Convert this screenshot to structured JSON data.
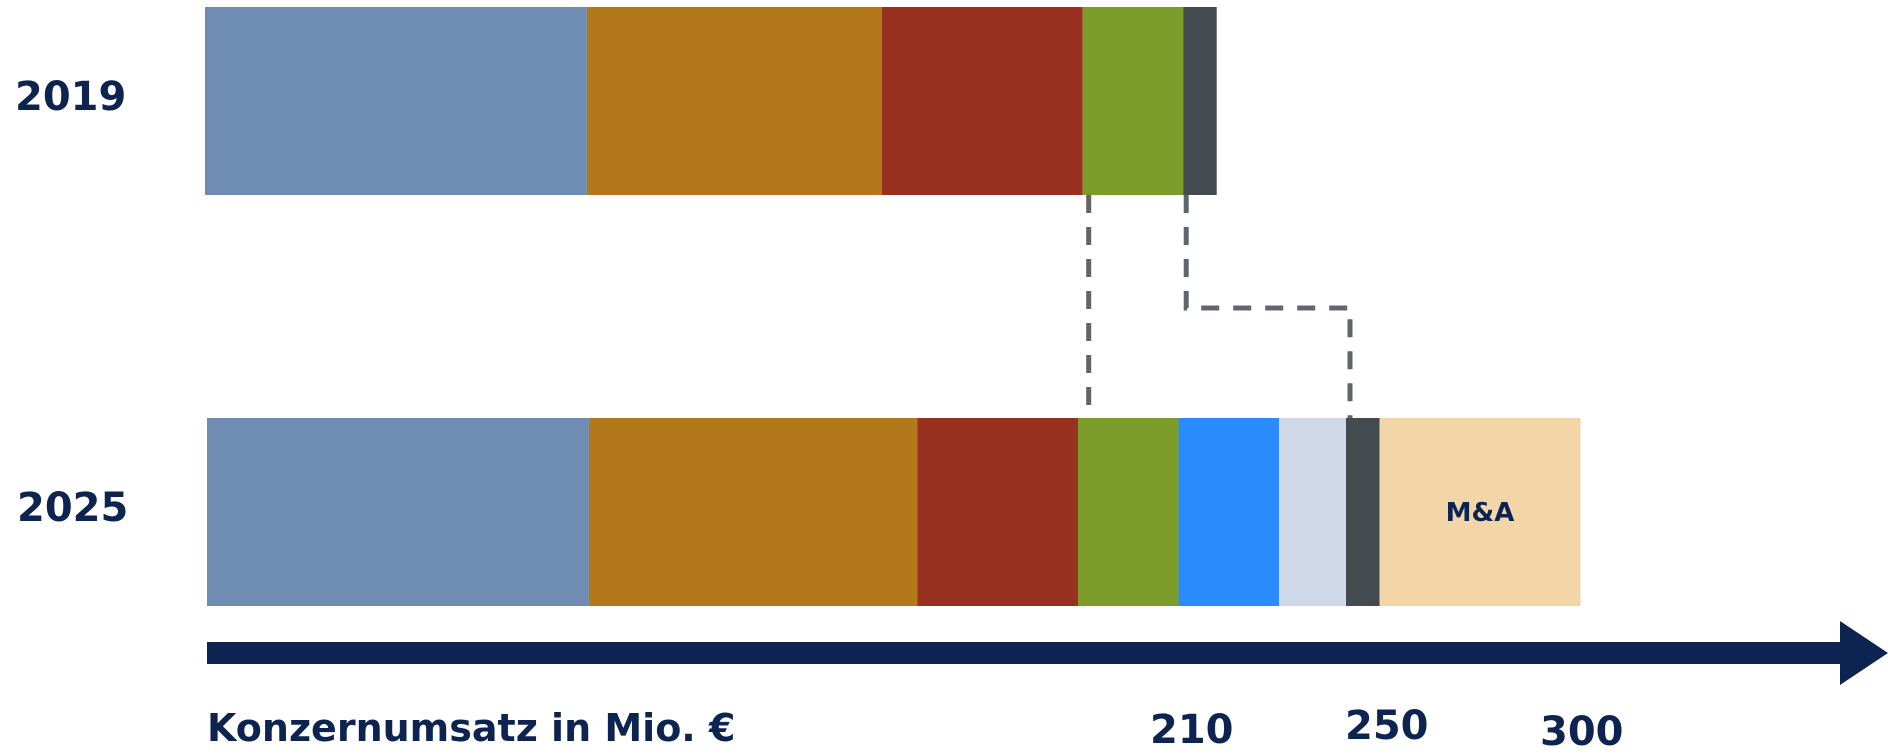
{
  "chart_data": {
    "type": "bar",
    "orientation": "horizontal",
    "stacked": true,
    "title": "",
    "xlabel": "Konzernumsatz in Mio. €",
    "ylabel": "",
    "categories": [
      "2019",
      "2025"
    ],
    "x_ticks": [
      "210",
      "250",
      "300"
    ],
    "bars": [
      {
        "category": "2019",
        "segments": [
          {
            "value": 57,
            "color": "#6f8cb2"
          },
          {
            "value": 44,
            "color": "#b27819"
          },
          {
            "value": 30,
            "color": "#993120"
          },
          {
            "value": 15,
            "color": "#7d9d2a"
          },
          {
            "value": 5,
            "color": "#434a50"
          }
        ]
      },
      {
        "category": "2025",
        "segments": [
          {
            "value": 57,
            "color": "#6f8cb2"
          },
          {
            "value": 49,
            "color": "#b27819"
          },
          {
            "value": 24,
            "color": "#993120"
          },
          {
            "value": 15,
            "color": "#7d9d2a"
          },
          {
            "value": 15,
            "color": "#2a8bfd"
          },
          {
            "value": 10,
            "color": "#ced8e6"
          },
          {
            "value": 5,
            "color": "#434a50"
          },
          {
            "value": 30,
            "color": "#f2d6a8",
            "label": "M&A"
          }
        ]
      }
    ],
    "connectors": "dashed",
    "connector_color": "#5f666e",
    "axis_color": "#0d2451",
    "grid": false,
    "legend": "none"
  }
}
